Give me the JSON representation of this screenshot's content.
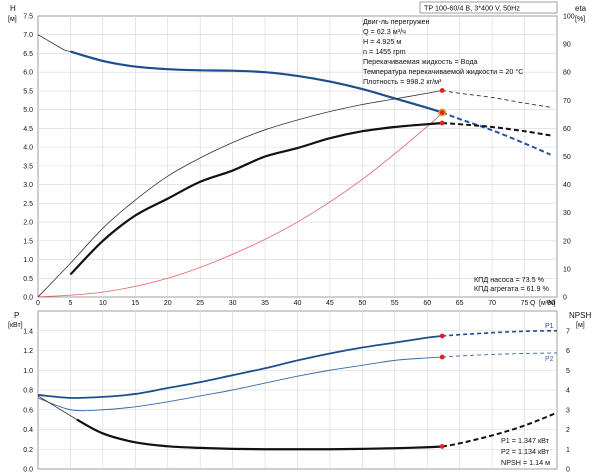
{
  "header": {
    "title": "TP 100-60/4 B, 3*400 V, 50Hz"
  },
  "info": {
    "lines": [
      "Двиг-ль перегружен",
      "Q = 62.3 м³/ч",
      "H = 4.925 м",
      "n = 1455 rpm",
      "Перекачиваемая жидкость = Вода",
      "Температура перекачиваемой жидкости = 20 °C",
      "Плотность = 998.2 кг/м³"
    ]
  },
  "efficiency_note": {
    "pump": "КПД насоса = 73.5 %",
    "unit": "КПД агрегата = 61.9 %"
  },
  "power_note": {
    "p1": "P1 = 1.347 кВт",
    "p2": "P2 = 1.134 кВт",
    "npsh": "NPSH = 1.14 м"
  },
  "axes": {
    "h_title": "H",
    "h_unit": "[м]",
    "eta_title": "eta",
    "eta_unit": "[%]",
    "p_title": "P",
    "p_unit": "[кВт]",
    "npsh_title": "NPSH",
    "npsh_unit": "[м]",
    "q_title": "Q",
    "q_unit": "[м³/ч]"
  },
  "colors": {
    "head": "#1f4e8c",
    "head_dashed": "#2255a0",
    "system": "#e06060",
    "eta": "#111111",
    "power_p1": "#1f4e8c",
    "power_p2": "#3a6aa8",
    "npsh": "#111111",
    "marker_red": "#dd2222",
    "marker_orange": "#f5a623",
    "grid": "#d6d6d6",
    "frame": "#888888"
  },
  "chart_data": [
    {
      "type": "line",
      "title": "TP 100-60/4 B, 3*400 V, 50Hz",
      "xlabel": "Q [м³/ч]",
      "ylabel": "H [м]",
      "y2label": "eta [%]",
      "xlim": [
        0,
        80
      ],
      "ylim": [
        0,
        7.5
      ],
      "y2lim": [
        0,
        100
      ],
      "xticks": [
        0,
        5,
        10,
        15,
        20,
        25,
        30,
        35,
        40,
        45,
        50,
        55,
        60,
        65,
        70,
        75,
        80
      ],
      "yticks": [
        0,
        0.5,
        1.0,
        1.5,
        2.0,
        2.5,
        3.0,
        3.5,
        4.0,
        4.5,
        5.0,
        5.5,
        6.0,
        6.5,
        7.0,
        7.5
      ],
      "y2ticks": [
        0,
        10,
        20,
        30,
        40,
        50,
        60,
        70,
        80,
        90,
        100
      ],
      "duty_point": {
        "q": 62.3,
        "h": 4.925
      },
      "series": [
        {
          "name": "H",
          "axis": "left",
          "style": "thin",
          "x": [
            0,
            2,
            4,
            5
          ],
          "y": [
            7.0,
            6.8,
            6.6,
            6.55
          ]
        },
        {
          "name": "H",
          "axis": "left",
          "style": "bold",
          "x": [
            5,
            10,
            15,
            20,
            25,
            30,
            35,
            40,
            45,
            50,
            55,
            60,
            62.3
          ],
          "y": [
            6.55,
            6.3,
            6.15,
            6.08,
            6.05,
            6.04,
            6.0,
            5.9,
            5.75,
            5.55,
            5.3,
            5.05,
            4.925
          ]
        },
        {
          "name": "H",
          "axis": "left",
          "style": "dashed",
          "x": [
            62.3,
            65,
            70,
            75,
            79
          ],
          "y": [
            4.925,
            4.75,
            4.45,
            4.1,
            3.8
          ]
        },
        {
          "name": "system",
          "axis": "left",
          "style": "system",
          "x": [
            0,
            10,
            20,
            30,
            40,
            50,
            60,
            62.3
          ],
          "y": [
            0,
            0.13,
            0.5,
            1.14,
            2.0,
            3.14,
            4.55,
            4.925
          ]
        },
        {
          "name": "eta pump",
          "axis": "right",
          "style": "thin",
          "x": [
            0,
            5,
            10,
            15,
            20,
            25,
            30,
            35,
            40,
            45,
            50,
            55,
            60,
            62.3
          ],
          "y": [
            0,
            12,
            24.5,
            34.5,
            43,
            49.5,
            55,
            59.5,
            63,
            66,
            68.5,
            70.5,
            72.5,
            73.5
          ]
        },
        {
          "name": "eta pump",
          "axis": "right",
          "style": "dashed_thin",
          "x": [
            62.3,
            65,
            70,
            75,
            79
          ],
          "y": [
            73.5,
            72.5,
            71,
            69,
            67.5
          ]
        },
        {
          "name": "eta unit",
          "axis": "right",
          "style": "thin",
          "x": [
            5,
            10,
            15,
            20,
            25,
            30,
            35,
            40,
            45,
            50,
            55,
            60,
            62.3
          ],
          "y": [
            8,
            20,
            29,
            35,
            41,
            45,
            50,
            53,
            56.5,
            59,
            60.5,
            61.5,
            61.9
          ]
        },
        {
          "name": "eta unit",
          "axis": "right",
          "style": "bold",
          "x": [
            5,
            10,
            15,
            20,
            25,
            30,
            35,
            40,
            45,
            50,
            55,
            60,
            62.3
          ],
          "y": [
            8,
            20,
            29,
            35,
            41,
            45,
            50,
            53,
            56.5,
            59,
            60.5,
            61.5,
            61.9
          ]
        },
        {
          "name": "eta unit",
          "axis": "right",
          "style": "dashed",
          "x": [
            62.3,
            65,
            70,
            75,
            79
          ],
          "y": [
            61.9,
            61.5,
            60.5,
            59,
            57.5
          ]
        }
      ],
      "markers": [
        {
          "x": 62.3,
          "y": 4.925,
          "axis": "left",
          "kind": "orange"
        },
        {
          "x": 62.3,
          "y": 4.925,
          "axis": "left",
          "kind": "red"
        },
        {
          "x": 62.3,
          "y": 73.5,
          "axis": "right",
          "kind": "red"
        },
        {
          "x": 62.3,
          "y": 61.9,
          "axis": "right",
          "kind": "red"
        }
      ]
    },
    {
      "type": "line",
      "xlabel": "Q [м³/ч]",
      "ylabel": "P [кВт]",
      "y2label": "NPSH [м]",
      "xlim": [
        0,
        80
      ],
      "ylim": [
        0,
        1.6
      ],
      "y2lim": [
        0,
        8
      ],
      "yticks": [
        0,
        0.2,
        0.4,
        0.6,
        0.8,
        1.0,
        1.2,
        1.4
      ],
      "y2ticks": [
        0,
        1,
        2,
        3,
        4,
        5,
        6,
        7
      ],
      "series": [
        {
          "name": "P1",
          "axis": "left",
          "style": "p1",
          "x": [
            0,
            5,
            10,
            15,
            20,
            25,
            30,
            35,
            40,
            45,
            50,
            55,
            60,
            62.3
          ],
          "y": [
            0.75,
            0.72,
            0.73,
            0.76,
            0.82,
            0.88,
            0.95,
            1.02,
            1.1,
            1.17,
            1.23,
            1.28,
            1.33,
            1.347
          ]
        },
        {
          "name": "P1",
          "axis": "left",
          "style": "p1_dashed",
          "x": [
            62.3,
            65,
            70,
            75,
            80
          ],
          "y": [
            1.347,
            1.36,
            1.38,
            1.395,
            1.4
          ]
        },
        {
          "name": "P2",
          "axis": "left",
          "style": "p2",
          "x": [
            0,
            5,
            10,
            15,
            20,
            25,
            30,
            35,
            40,
            45,
            50,
            55,
            60,
            62.3
          ],
          "y": [
            0.72,
            0.6,
            0.6,
            0.63,
            0.68,
            0.74,
            0.8,
            0.87,
            0.94,
            1.0,
            1.05,
            1.1,
            1.125,
            1.134
          ]
        },
        {
          "name": "P2",
          "axis": "left",
          "style": "p2_dashed",
          "x": [
            62.3,
            65,
            70,
            75,
            80
          ],
          "y": [
            1.134,
            1.145,
            1.16,
            1.17,
            1.175
          ]
        },
        {
          "name": "NPSH",
          "axis": "right",
          "style": "thin",
          "x": [
            0,
            2,
            4,
            6
          ],
          "y": [
            3.7,
            3.3,
            2.9,
            2.5
          ]
        },
        {
          "name": "NPSH",
          "axis": "right",
          "style": "bold",
          "x": [
            6,
            10,
            15,
            20,
            25,
            30,
            35,
            40,
            45,
            50,
            55,
            60,
            62.3
          ],
          "y": [
            2.5,
            1.8,
            1.35,
            1.15,
            1.07,
            1.02,
            1.0,
            1.0,
            1.0,
            1.02,
            1.05,
            1.1,
            1.14
          ]
        },
        {
          "name": "NPSH",
          "axis": "right",
          "style": "dashed",
          "x": [
            62.3,
            65,
            70,
            75,
            80
          ],
          "y": [
            1.14,
            1.3,
            1.7,
            2.2,
            2.85
          ]
        }
      ],
      "markers": [
        {
          "x": 62.3,
          "y": 1.347,
          "axis": "left",
          "kind": "red"
        },
        {
          "x": 62.3,
          "y": 1.134,
          "axis": "left",
          "kind": "red"
        },
        {
          "x": 62.3,
          "y": 1.14,
          "axis": "right",
          "kind": "red"
        }
      ],
      "curve_labels": [
        {
          "text": "P1",
          "series": "P1",
          "color": "power_p1"
        },
        {
          "text": "P2",
          "series": "P2",
          "color": "power_p2"
        }
      ]
    }
  ]
}
